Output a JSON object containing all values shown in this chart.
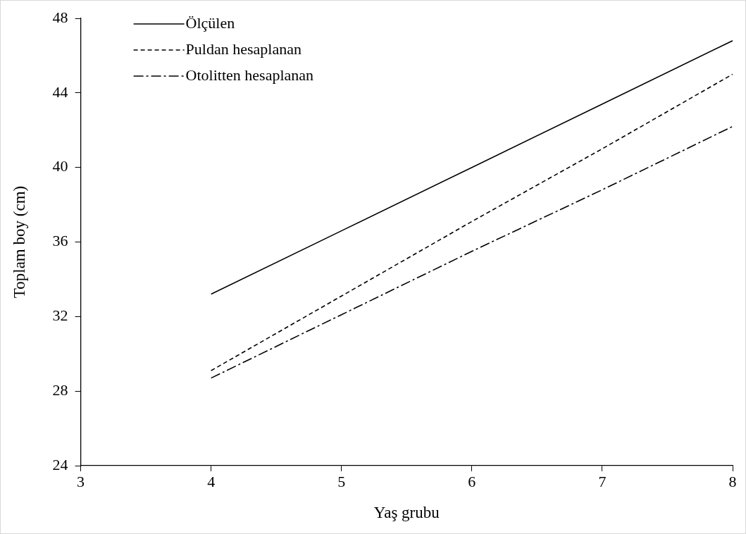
{
  "chart_data": {
    "type": "line",
    "xlabel": "Yaş grubu",
    "ylabel": "Toplam boy (cm)",
    "x": [
      4,
      5,
      6,
      7,
      8
    ],
    "series": [
      {
        "name": "Ölçülen",
        "color": "#000000",
        "line_style": "solid",
        "values": [
          33.2,
          36.6,
          40.0,
          43.4,
          46.8
        ]
      },
      {
        "name": "Puldan hesaplanan",
        "color": "#000000",
        "line_style": "dashed",
        "values": [
          29.1,
          33.1,
          37.1,
          41.0,
          45.0
        ]
      },
      {
        "name": "Otolitten hesaplanan",
        "color": "#000000",
        "line_style": "dashdot",
        "values": [
          28.7,
          32.1,
          35.5,
          38.8,
          42.2
        ]
      }
    ],
    "xlim": [
      3,
      8
    ],
    "xticks": [
      3,
      4,
      5,
      6,
      7,
      8
    ],
    "ylim": [
      24,
      48
    ],
    "yticks": [
      24,
      28,
      32,
      36,
      40,
      44,
      48
    ],
    "grid": false,
    "legend": "top left",
    "marker": "none"
  }
}
